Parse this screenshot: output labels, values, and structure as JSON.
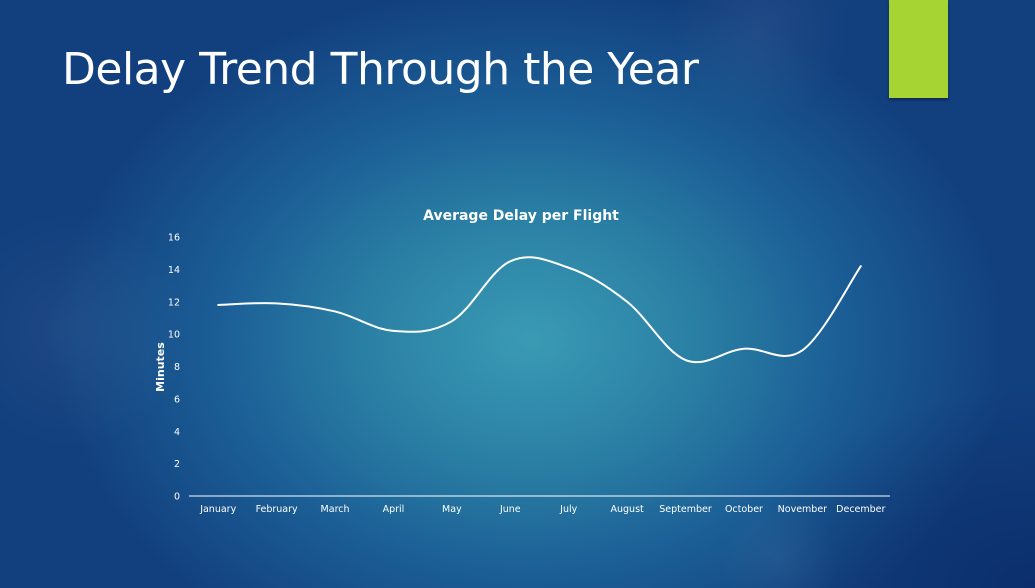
{
  "slide": {
    "title": "Delay Trend Through the Year",
    "accent_color": "#a6d433"
  },
  "chart_data": {
    "type": "line",
    "title": "Average Delay per Flight",
    "xlabel": "",
    "ylabel": "Minutes",
    "categories": [
      "January",
      "February",
      "March",
      "April",
      "May",
      "June",
      "July",
      "August",
      "September",
      "October",
      "November",
      "December"
    ],
    "series": [
      {
        "values": [
          11.8,
          11.9,
          11.4,
          10.2,
          10.8,
          14.5,
          14.1,
          12.0,
          8.4,
          9.1,
          9.0,
          14.2
        ],
        "color": "#ffffff"
      }
    ],
    "ylim": [
      0,
      16
    ],
    "yticks": [
      0,
      2,
      4,
      6,
      8,
      10,
      12,
      14,
      16
    ],
    "grid": false,
    "legend": "none"
  }
}
